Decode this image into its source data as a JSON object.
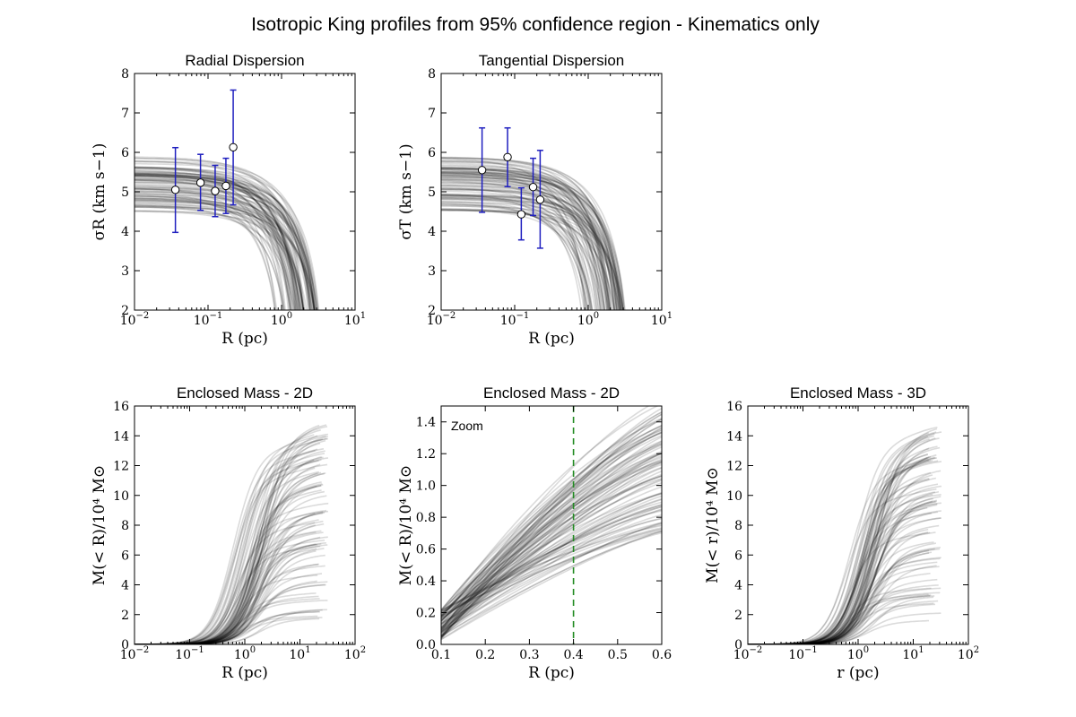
{
  "figure_title": "Isotropic King profiles from 95% confidence region - Kinematics only",
  "chart_data": [
    {
      "id": "radial",
      "type": "line",
      "title": "Radial Dispersion",
      "xlabel": "R (pc)",
      "ylabel": "σR (km s−1)",
      "xscale": "log",
      "xlim": [
        0.01,
        10
      ],
      "ylim": [
        2,
        8
      ],
      "xticks": [
        {
          "v": 0.01,
          "b": "10",
          "e": "−2"
        },
        {
          "v": 0.1,
          "b": "10",
          "e": "−1"
        },
        {
          "v": 1,
          "b": "10",
          "e": "0"
        },
        {
          "v": 10,
          "b": "10",
          "e": "1"
        }
      ],
      "yticks": [
        "2",
        "3",
        "4",
        "5",
        "6",
        "7",
        "8"
      ],
      "model": "velocity_dispersion",
      "series_note": "~100 gray King model curves, central dispersion 4.5–5.9 km/s",
      "points": [
        {
          "x": 0.036,
          "y": 5.05,
          "lo": 3.97,
          "hi": 6.12
        },
        {
          "x": 0.079,
          "y": 5.23,
          "lo": 4.53,
          "hi": 5.95
        },
        {
          "x": 0.125,
          "y": 5.02,
          "lo": 4.37,
          "hi": 5.67
        },
        {
          "x": 0.175,
          "y": 5.15,
          "lo": 4.45,
          "hi": 5.85
        },
        {
          "x": 0.22,
          "y": 6.13,
          "lo": 4.67,
          "hi": 7.58
        }
      ]
    },
    {
      "id": "tangential",
      "type": "line",
      "title": "Tangential Dispersion",
      "xlabel": "R (pc)",
      "ylabel": "σT (km s−1)",
      "xscale": "log",
      "xlim": [
        0.01,
        10
      ],
      "ylim": [
        2,
        8
      ],
      "xticks": [
        {
          "v": 0.01,
          "b": "10",
          "e": "−2"
        },
        {
          "v": 0.1,
          "b": "10",
          "e": "−1"
        },
        {
          "v": 1,
          "b": "10",
          "e": "0"
        },
        {
          "v": 10,
          "b": "10",
          "e": "1"
        }
      ],
      "yticks": [
        "2",
        "3",
        "4",
        "5",
        "6",
        "7",
        "8"
      ],
      "model": "velocity_dispersion",
      "series_note": "~100 gray King model curves, central dispersion 4.5–5.9 km/s",
      "points": [
        {
          "x": 0.036,
          "y": 5.55,
          "lo": 4.48,
          "hi": 6.62
        },
        {
          "x": 0.08,
          "y": 5.88,
          "lo": 5.13,
          "hi": 6.62
        },
        {
          "x": 0.123,
          "y": 4.43,
          "lo": 3.78,
          "hi": 5.1
        },
        {
          "x": 0.178,
          "y": 5.12,
          "lo": 4.4,
          "hi": 5.85
        },
        {
          "x": 0.222,
          "y": 4.8,
          "lo": 3.57,
          "hi": 6.05
        }
      ]
    },
    {
      "id": "mass2d",
      "type": "line",
      "title": "Enclosed Mass - 2D",
      "xlabel": "R (pc)",
      "ylabel": "M(< R)/10⁴ M⊙",
      "xscale": "log",
      "xlim": [
        0.01,
        100
      ],
      "ylim": [
        0,
        16
      ],
      "xticks": [
        {
          "v": 0.01,
          "b": "10",
          "e": "−2"
        },
        {
          "v": 0.1,
          "b": "10",
          "e": "−1"
        },
        {
          "v": 1,
          "b": "10",
          "e": "0"
        },
        {
          "v": 10,
          "b": "10",
          "e": "1"
        },
        {
          "v": 100,
          "b": "10",
          "e": "2"
        }
      ],
      "yticks": [
        "0",
        "2",
        "4",
        "6",
        "8",
        "10",
        "12",
        "14",
        "16"
      ],
      "model": "enclosed_mass",
      "series_note": "~100 gray curves, asymptotic mass 1.5–15 ×10⁴ Msun, truncated near R = 30 pc",
      "points": []
    },
    {
      "id": "zoom",
      "type": "line",
      "title": "Enclosed Mass - 2D",
      "annotation": "Zoom",
      "xlabel": "R (pc)",
      "ylabel": "M(< R)/10⁴ M⊙",
      "xscale": "linear",
      "xlim": [
        0.1,
        0.6
      ],
      "ylim": [
        0,
        1.5
      ],
      "xticks": [
        {
          "v": 0.1,
          "t": "0.1"
        },
        {
          "v": 0.2,
          "t": "0.2"
        },
        {
          "v": 0.3,
          "t": "0.3"
        },
        {
          "v": 0.4,
          "t": "0.4"
        },
        {
          "v": 0.5,
          "t": "0.5"
        },
        {
          "v": 0.6,
          "t": "0.6"
        }
      ],
      "yticks": [
        "0.0",
        "0.2",
        "0.4",
        "0.6",
        "0.8",
        "1.0",
        "1.2",
        "1.4"
      ],
      "vline_x": 0.4,
      "vline_color": "#228b22",
      "model": "enclosed_mass_zoom",
      "series_note": "~100 gray curves, M(0.1 pc) 0.03–0.25, M(0.6 pc) 0.7–1.55",
      "points": []
    },
    {
      "id": "mass3d",
      "type": "line",
      "title": "Enclosed Mass - 3D",
      "xlabel": "r (pc)",
      "ylabel": "M(< r)/10⁴ M⊙",
      "xscale": "log",
      "xlim": [
        0.01,
        100
      ],
      "ylim": [
        0,
        16
      ],
      "xticks": [
        {
          "v": 0.01,
          "b": "10",
          "e": "−2"
        },
        {
          "v": 0.1,
          "b": "10",
          "e": "−1"
        },
        {
          "v": 1,
          "b": "10",
          "e": "0"
        },
        {
          "v": 10,
          "b": "10",
          "e": "1"
        },
        {
          "v": 100,
          "b": "10",
          "e": "2"
        }
      ],
      "yticks": [
        "0",
        "2",
        "4",
        "6",
        "8",
        "10",
        "12",
        "14",
        "16"
      ],
      "model": "enclosed_mass",
      "series_note": "~100 gray curves, asymptotic mass 1.5–15 ×10⁴ Msun, truncated near r = 30 pc",
      "points": []
    }
  ],
  "colors": {
    "errorbar": "#1f1fbf",
    "marker_fill": "#ffffff",
    "curves": "#000000",
    "vline": "#228b22"
  }
}
